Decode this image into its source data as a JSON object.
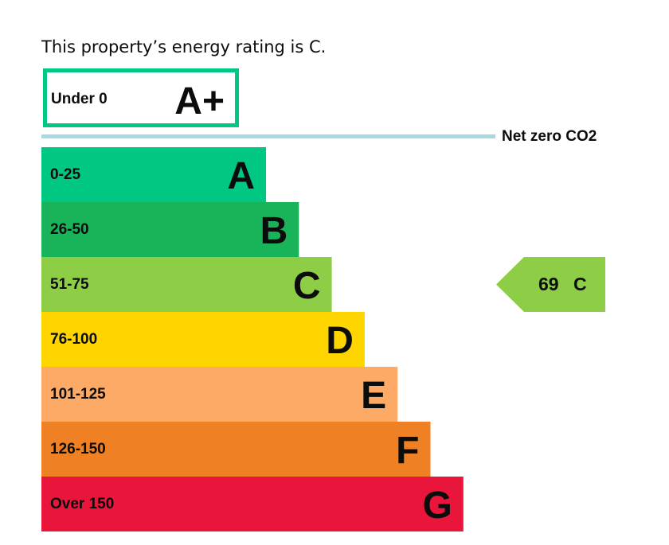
{
  "summary": "This property’s energy rating is C.",
  "chart_data": {
    "type": "bar",
    "bands": [
      {
        "range": "Under 0",
        "letter": "A+",
        "color": "#ffffff",
        "border": "#00c781"
      },
      {
        "range": "0-25",
        "letter": "A",
        "color": "#00c781"
      },
      {
        "range": "26-50",
        "letter": "B",
        "color": "#19b459"
      },
      {
        "range": "51-75",
        "letter": "C",
        "color": "#8dce46"
      },
      {
        "range": "76-100",
        "letter": "D",
        "color": "#ffd500"
      },
      {
        "range": "101-125",
        "letter": "E",
        "color": "#fcaa65"
      },
      {
        "range": "126-150",
        "letter": "F",
        "color": "#ef8023"
      },
      {
        "range": "Over 150",
        "letter": "G",
        "color": "#e9153b"
      }
    ],
    "net_zero_label": "Net zero CO2",
    "net_zero_line_color": "#a7d9e5",
    "current_rating": {
      "score": "69",
      "letter": "C",
      "band_index": 3,
      "color": "#8dce46"
    }
  }
}
